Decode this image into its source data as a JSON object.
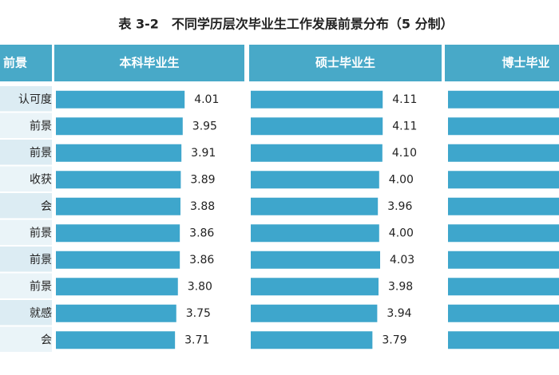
{
  "title": "表 3-2　不同学历层次毕业生工作发展前景分布（5 分制）",
  "header": [
    "前景",
    "本科毕业生",
    "硕士毕业生",
    "博士毕业"
  ],
  "rows": [
    "认可度",
    "前景",
    "前景",
    "收获",
    "会",
    "前景",
    "前景",
    "前景",
    "就感",
    "会"
  ],
  "series": [
    {
      "name": "本科毕业生",
      "color": "#3ea6cc",
      "values": [
        4.01,
        3.95,
        3.91,
        3.89,
        3.88,
        3.86,
        3.86,
        3.8,
        3.75,
        3.71
      ],
      "value_labels": [
        "4.01",
        "3.95",
        "3.91",
        "3.89",
        "3.88",
        "3.86",
        "3.86",
        "3.80",
        "3.75",
        "3.71"
      ]
    },
    {
      "name": "硕士毕业生",
      "color": "#3ea6cc",
      "values": [
        4.11,
        4.11,
        4.1,
        4.0,
        3.96,
        4.0,
        4.03,
        3.98,
        3.94,
        3.79
      ],
      "value_labels": [
        "4.11",
        "4.11",
        "4.10",
        "4.00",
        "3.96",
        "4.00",
        "4.03",
        "3.98",
        "3.94",
        "3.79"
      ]
    }
  ]
}
